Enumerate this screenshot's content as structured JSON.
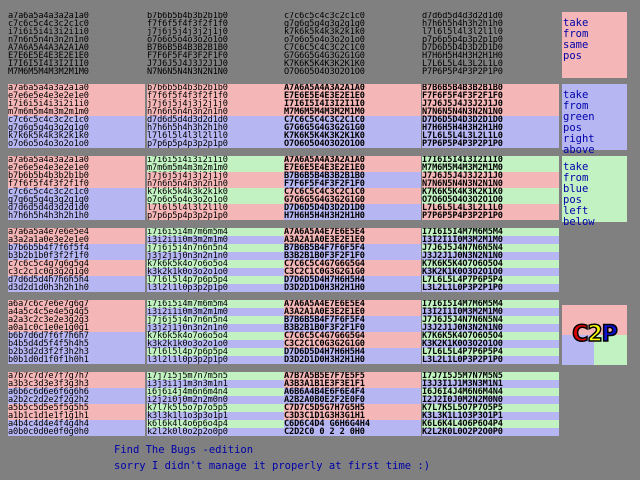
{
  "colors": {
    "background": "#808080",
    "pink": "#f4b6b6",
    "green": "#c2f2c2",
    "blue": "#b6b6f2",
    "text_blue": "#0000aa"
  },
  "grid": [
    {
      "bg": "n",
      "lines": [
        "a7a6a5a4a3a2a1a0",
        "c7c6c5c4c3c2c1c0",
        "i7i6i5i4i3i2i1i0",
        "n7n6n5n4n3n2n1n0",
        "A7A6A5A4A3A2A1A0",
        "E7E6E5E4E3E2E1E0",
        "I7I6I5I4I3I2I1I0",
        "M7M6M5M4M3M2M1M0"
      ]
    },
    {
      "bg": "n",
      "lines": [
        "b7b6b5b4b3b2b1b0",
        "f7f6f5f4f3f2f1f0",
        "j7j6j5j4j3j2j1j0",
        "o7o6o5o4o3o2o1o0",
        "B7B6B5B4B3B2B1B0",
        "F7F6F5F4F3F2F1F0",
        "J7J6J5J4J3J2J1J0",
        "N7N6N5N4N3N2N1N0"
      ]
    },
    {
      "bg": "n",
      "lines": [
        "c7c6c5c4c3c2c1c0",
        "g7g6g5g4g3g2g1g0",
        "k7k6k5k4k3k2k1k0",
        "o7o6o5o4o3o2o1o0",
        "C7C6C5C4C3C2C1C0",
        "G7G6G5G4G3G2G1G0",
        "K7K6K5K4K3K2K1K0",
        "O7O6O5O4O3O2O1O0"
      ]
    },
    {
      "bg": "n",
      "lines": [
        "d7d6d5d4d3d2d1d0",
        "h7h6h5h4h3h2h1h0",
        "l7l6l5l4l3l2l1l0",
        "p7p6p5p4p3p2p1p0",
        "D7D6D5D4D3D2D1D0",
        "H7H6H5H4H3H2H1H0",
        "L7L6L5L4L3L2L1L0",
        "P7P6P5P4P3P2P1P0"
      ]
    },
    {
      "bg": "mixed",
      "lines": [
        "a7a6a5a4a3a2a1a0",
        "e7e6e5e4e3e2e1e0",
        "i7i6i5i4i3i2i1i0",
        "m7m6m5m4m3m2m1m0",
        "c7c6c5c4c3c2c1c0",
        "g7g6g5g4g3g2g1g0",
        "k7k6k5k4k3k2k1k0",
        "o7o6o5o4o3o2o1o0"
      ],
      "line_bg": [
        "p",
        "p",
        "p",
        "p",
        "b",
        "b",
        "b",
        "b"
      ]
    },
    {
      "bg": "mixed",
      "lines": [
        "b7b6b5b4b3b2b1b0",
        "f7f6f5f4f3f2f1f0",
        "j7j6j5j4j3j2j1j0",
        "n7n6n5n4n3n2n1n0",
        "d7d6d5d4d3d2d1d0",
        "h7h6h5h4h3h2h1h0",
        "l7l6l5l4l3l2l1l0",
        "p7p6p5p4p3p2p1p0"
      ],
      "line_bg": [
        "p",
        "p",
        "p",
        "p",
        "b",
        "b",
        "b",
        "b"
      ]
    },
    {
      "bg": "mixed",
      "lines": [
        "A7A6A5A4A3A2A1A0",
        "E7E6E5E4E3E2E1E0",
        "I7I6I5I4I3I2I1I0",
        "M7M6M5M4M3M2M1M0",
        "C7C6C5C4C3C2C1C0",
        "G7G6G5G4G3G2G1G0",
        "K7K6K5K4K3K2K1K0",
        "O7O6O5O4O3O2O1O0"
      ],
      "line_bg": [
        "p",
        "p",
        "p",
        "p",
        "b",
        "b",
        "b",
        "b"
      ],
      "bold": true
    },
    {
      "bg": "mixed",
      "lines": [
        "B7B6B5B4B3B2B1B0",
        "F7F6F5F4F3F2F1F0",
        "J7J6J5J4J3J2J1J0",
        "N7N6N5N4N3N2N1N0",
        "D7D6D5D4D3D2D1D0",
        "H7H6H5H4H3H2H1H0",
        "L7L6L5L4L3L2L1L0",
        "P7P6P5P4P3P2P1P0"
      ],
      "line_bg": [
        "p",
        "p",
        "p",
        "p",
        "b",
        "b",
        "b",
        "b"
      ],
      "bold": true
    },
    {
      "bg": "mixed",
      "lines": [
        "a7a6a5a4a3a2a1a0",
        "e7e6e5e4e3e2e1e0",
        "b7b6b5b4b3b2b1b0",
        "f7f6f5f4f3f2f1f0",
        "c7c6c5c4c3c2c1c0",
        "g7g6g5g4g3g2g1g0",
        "d7d6d5d4d3d2d1d0",
        "h7h6h5h4h3h2h1h0"
      ],
      "line_bg": [
        "p",
        "p",
        "p",
        "p",
        "b",
        "b",
        "b",
        "b"
      ]
    },
    {
      "bg": "mixed",
      "lines": [
        "i7i6i5i4i3i2i1i0",
        "m7m6m5m4m3m2m1m0",
        "j7j6j5j4j3j2j1j0",
        "n7n6n5n4n3n2n1n0",
        "k7k6k5k4k3k2k1k0",
        "o7o6o5o4o3o2o1o0",
        "l7l6l5l4l3l2l1l0",
        "p7p6p5p4p3p2p1p0"
      ],
      "line_bg": [
        "g",
        "g",
        "p",
        "p",
        "g",
        "g",
        "p",
        "p"
      ]
    },
    {
      "bg": "mixed",
      "lines": [
        "A7A6A5A4A3A2A1A0",
        "E7E6E5E4E3E2E1E0",
        "B7B6B5B4B3B2B1B0",
        "F7F6F5F4F3F2F1F0",
        "C7C6C5C4C3C2C1C0",
        "G7G6G5G4G3G2G1G0",
        "D7D6D5D4D3D2D1D0",
        "H7H6H5H4H3H2H1H0"
      ],
      "line_bg": [
        "p",
        "p",
        "b",
        "b",
        "p",
        "p",
        "b",
        "b"
      ],
      "bold": true
    },
    {
      "bg": "mixed",
      "lines": [
        "I7I6I5I4I3I2I1I0",
        "M7M6M5M4M3M2M1M0",
        "J7J6J5J4J3J2J1J0",
        "N7N6N5N4N3N2N1N0",
        "K7K6K5K4K3K2K1K0",
        "O7O6O5O4O3O2O1O0",
        "L7L6L5L4L3L2L1L0",
        "P7P6P5P4P3P2P1P0"
      ],
      "line_bg": [
        "g",
        "g",
        "p",
        "p",
        "g",
        "g",
        "p",
        "p"
      ],
      "bold": true
    },
    {
      "bg": "mixed",
      "lines": [
        "a7a6a5a4e7e6e5e4",
        "a3a2a1a0e3e2e1e0",
        "b7b6b5b4f7f6f5f4",
        "b3b2b1b0f3f2f1f0",
        "c7c6c5c4g7g6g5g4",
        "c3c2c1c0g3g2g1g0",
        "d7d6d5d4h7h6h5h4",
        "d3d2d1d0h3h2h1h0"
      ],
      "line_bg": [
        "p",
        "p",
        "b",
        "b",
        "p",
        "p",
        "b",
        "b"
      ]
    },
    {
      "bg": "mixed",
      "lines": [
        "i7i6i5i4m7m6m5m4",
        "i3i2i1i0m3m2m1m0",
        "j7j6j5j4n7n6n5n4",
        "j3j2j1j0n3n2n1n0",
        "k7k6k5k4o7o6o5o4",
        "k3k2k1k0o3o2o1o0",
        "l7l6l5l4p7p6p5p4",
        "l3l2l1l0p3p2p1p0"
      ],
      "line_bg": [
        "g",
        "b",
        "g",
        "b",
        "g",
        "b",
        "g",
        "b"
      ]
    },
    {
      "bg": "mixed",
      "lines": [
        "A7A6A5A4E7E6E5E4",
        "A3A2A1A0E3E2E1E0",
        "B7B6B5B4F7F6F5F4",
        "B3B2B1B0F3F2F1F0",
        "C7C6C5C4G7G6G5G4",
        "C3C2C1C0G3G2G1G0",
        "D7D6D5D4H7H6H5H4",
        "D3D2D1D0H3H2H1H0"
      ],
      "line_bg": [
        "p",
        "p",
        "b",
        "b",
        "p",
        "p",
        "b",
        "b"
      ],
      "bold": true
    },
    {
      "bg": "mixed",
      "lines": [
        "I7I6I5I4M7M6M5M4",
        "I3I2I1I0M3M2M1M0",
        "J7J6J5J4N7N6N5N4",
        "J3J2J1J0N3N2N1N0",
        "K7K6K5K4O7O6O5O4",
        "K3K2K1K0O3O2O1O0",
        "L7L6L5L4P7P6P5P4",
        "L3L2L1L0P3P2P1P0"
      ],
      "line_bg": [
        "g",
        "b",
        "g",
        "b",
        "g",
        "b",
        "g",
        "b"
      ],
      "bold": true
    },
    {
      "bg": "mixed",
      "lines": [
        "a6a7c6c7e6e7g6g7",
        "a4a5c4c5e4e5g4g5",
        "a2a3c2c3e2e3g2g3",
        "a0a1c0c1e0e1g0g1",
        "b6b7d6d7f6f7h6h7",
        "b4b5d4d5f4f5h4h5",
        "b2b3d2d3f2f3h2h3",
        "b0b1d0d1f0f1h0h1"
      ],
      "line_bg": [
        "p",
        "p",
        "p",
        "p",
        "b",
        "b",
        "b",
        "b"
      ]
    },
    {
      "bg": "mixed",
      "lines": [
        "i7i6i5i4m7m6m5m4",
        "i3i2i1i0m3m2m1m0",
        "j7j6j5j4n7n6n5n4",
        "j3j2j1j0n3n2n1n0",
        "k7k6k5k4o7o6o5o4",
        "k3k2k1k0o3o2o1o0",
        "l7l6l5l4p7p6p5p4",
        "l3l2l1l0p3p2p1p0"
      ],
      "line_bg": [
        "g",
        "b",
        "g",
        "b",
        "g",
        "b",
        "g",
        "b"
      ]
    },
    {
      "bg": "mixed",
      "lines": [
        "A7A6A5A4E7E6E5E4",
        "A3A2A1A0E3E2E1E0",
        "B7B6B5B4F7F6F5F4",
        "B3B2B1B0F3F2F1F0",
        "C7C6C5C4G7G6G5G4",
        "C3C2C1C0G3G2G1G0",
        "D7D6D5D4H7H6H5H4",
        "D3D2D1D0H3H2H1H0"
      ],
      "line_bg": [
        "p",
        "p",
        "b",
        "b",
        "p",
        "p",
        "b",
        "b"
      ],
      "bold": true
    },
    {
      "bg": "mixed",
      "lines": [
        "I7I6I5I4M7M6M5M4",
        "I3I2I1I0M3M2M1M0",
        "J7J6J5J4N7N6N5N4",
        "J3J2J1J0N3N2N1N0",
        "K7K6K5K4O7O6O5O4",
        "K3K2K1K0O3O2O1O0",
        "L7L6L5L4P7P6P5P4",
        "L3L2L1L0P3P2P1P0"
      ],
      "line_bg": [
        "g",
        "b",
        "g",
        "b",
        "g",
        "b",
        "g",
        "b"
      ],
      "bold": true
    },
    {
      "bg": "mixed",
      "lines": [
        "a7b7c7d7e7f7g7h7",
        "a3b3c3d3e3f3g3h3",
        "a6b6c6d6e6f6g6h6",
        "a2b2c2d2e2f2g2h2",
        "a5b5c5d5e5f5g5h5",
        "a1b1c1d1e1f1g1h1",
        "a4b4c4d4e4f4g4h4",
        "a0b0c0d0e0f0g0h0"
      ],
      "line_bg": [
        "p",
        "p",
        "b",
        "b",
        "p",
        "p",
        "b",
        "b"
      ]
    },
    {
      "bg": "mixed",
      "lines": [
        "i7j7i5j5m7n7m5n5",
        "i3j3i1j1m3n3m1n1",
        "i6j6i4j4m6n6m4n4",
        "i2j2i0j0m2n2m0n0",
        "k7l7k5l5o7p7o5p5",
        "k3l3k1l1o3p3o1p1",
        "k6l6k4l4o6p6o4p4",
        "k2l2k0l0o2p2o0p0"
      ],
      "line_bg": [
        "g",
        "b",
        "g",
        "b",
        "g",
        "b",
        "g",
        "b"
      ]
    },
    {
      "bg": "mixed",
      "lines": [
        "A7B7A5B5E7F7E5F5",
        "A3B3A1B1E3F3E1F1",
        "A6B6A4B4E6F6E4F4",
        "A2B2A0B0E2F2E0F0",
        "C7D7C5D5G7H7G5H5",
        "C3D3C1D1G3H3G1H1",
        "C6D6C4D4 G6H6G4H4",
        "C2D2C0 0 2 2 0H0"
      ],
      "line_bg": [
        "p",
        "p",
        "b",
        "b",
        "p",
        "p",
        "b",
        "b"
      ],
      "bold": true
    },
    {
      "bg": "mixed",
      "lines": [
        "I7J7I5J5M7N7M5N5",
        "I3J3I1J1M3N3M1N1",
        "I6J6I4J4M6N6M4N4",
        "I2J2I0J0M2N2M0N0",
        "K7L7K5L5O7P7O5P5",
        "K3L3K1L1O3P3O1P1",
        "K6L6K4L4O6P6O4P4",
        "K2L2K0L0O2P2O0P0"
      ],
      "line_bg": [
        "g",
        "b",
        "g",
        "b",
        "g",
        "b",
        "g",
        "b"
      ],
      "bold": true
    }
  ],
  "side_labels": {
    "same": "take\nfrom\nsame\npos",
    "green": "take\nfrom\ngreen\npos\nright\nabove",
    "blue": "take\nfrom\nblue\npos\nleft\nbelow"
  },
  "logo": {
    "c": "C",
    "two": "2",
    "p": "P"
  },
  "footer": {
    "title": "Find The Bugs -edition",
    "note": "sorry I didn't manage it properly at first time :)"
  }
}
